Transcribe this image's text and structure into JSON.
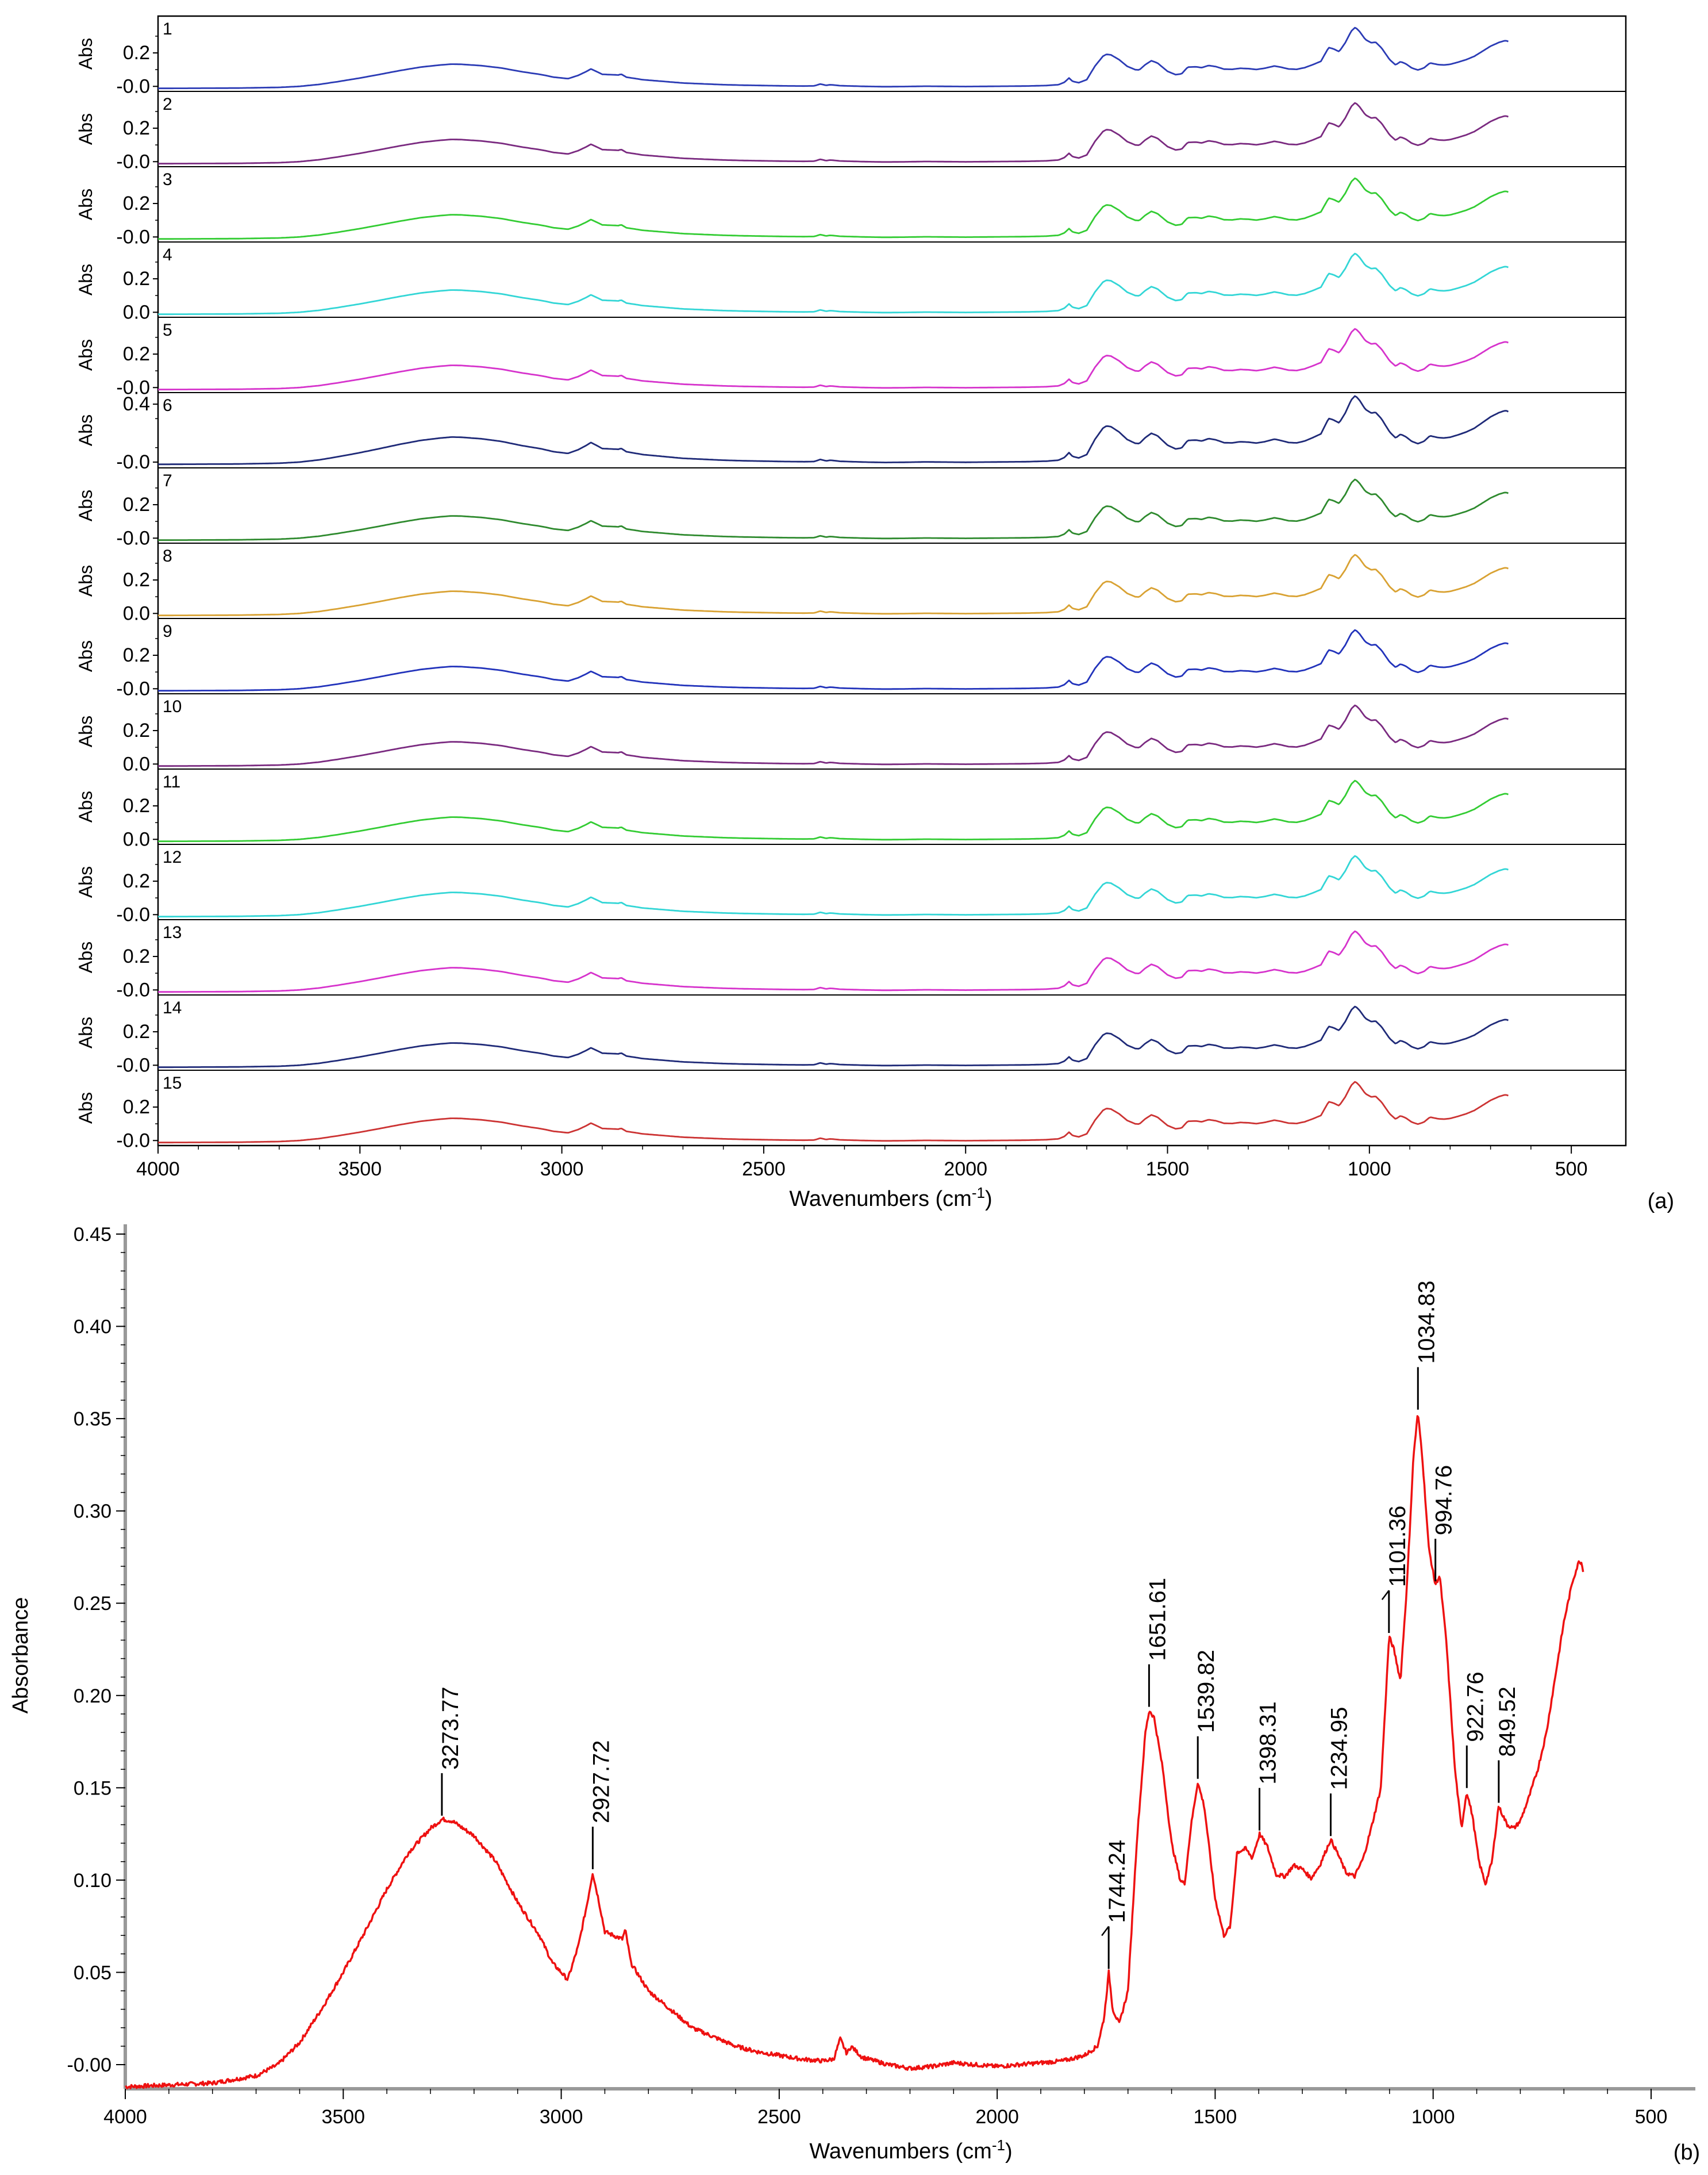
{
  "chart_data": [
    {
      "id": "a",
      "panel_label": "(a)",
      "type": "line",
      "title": "",
      "xlabel": "Wavenumbers (cm",
      "xlabel_sup": "-1",
      "xlabel_end": ")",
      "ylabel": "Abs",
      "xlim": [
        4000,
        365
      ],
      "xticks": [
        4000,
        3500,
        3000,
        2500,
        2000,
        1500,
        1000,
        500
      ],
      "series": [
        {
          "name": "1",
          "color": "#2b3bb5",
          "ylim": [
            -0.03,
            0.42
          ],
          "ticks": [
            {
              "v": 0.2,
              "label": "0.2"
            },
            {
              "v": 0.0,
              "label": "-0.0"
            }
          ],
          "scale": 1.0
        },
        {
          "name": "2",
          "color": "#7a2a80",
          "ylim": [
            -0.03,
            0.42
          ],
          "ticks": [
            {
              "v": 0.2,
              "label": "0.2"
            },
            {
              "v": 0.0,
              "label": "-0.0"
            }
          ],
          "scale": 1.0
        },
        {
          "name": "3",
          "color": "#33cc33",
          "ylim": [
            -0.03,
            0.42
          ],
          "ticks": [
            {
              "v": 0.2,
              "label": "0.2"
            },
            {
              "v": 0.0,
              "label": "-0.0"
            }
          ],
          "scale": 1.0
        },
        {
          "name": "4",
          "color": "#33d6d6",
          "ylim": [
            -0.03,
            0.42
          ],
          "ticks": [
            {
              "v": 0.2,
              "label": "0.2"
            },
            {
              "v": 0.0,
              "label": "0.0"
            }
          ],
          "scale": 1.0
        },
        {
          "name": "5",
          "color": "#d633cc",
          "ylim": [
            -0.03,
            0.42
          ],
          "ticks": [
            {
              "v": 0.2,
              "label": "0.2"
            },
            {
              "v": 0.0,
              "label": "-0.0"
            }
          ],
          "scale": 1.0
        },
        {
          "name": "6",
          "color": "#1f2a78",
          "ylim": [
            -0.04,
            0.48
          ],
          "ticks": [
            {
              "v": 0.4,
              "label": "0.4"
            },
            {
              "v": 0.0,
              "label": "-0.0"
            }
          ],
          "scale": 1.3
        },
        {
          "name": "7",
          "color": "#2e8a2e",
          "ylim": [
            -0.03,
            0.42
          ],
          "ticks": [
            {
              "v": 0.2,
              "label": "0.2"
            },
            {
              "v": 0.0,
              "label": "-0.0"
            }
          ],
          "scale": 1.0
        },
        {
          "name": "8",
          "color": "#d9a233",
          "ylim": [
            -0.03,
            0.42
          ],
          "ticks": [
            {
              "v": 0.2,
              "label": "0.2"
            },
            {
              "v": 0.0,
              "label": "0.0"
            }
          ],
          "scale": 1.0
        },
        {
          "name": "9",
          "color": "#2233bb",
          "ylim": [
            -0.03,
            0.42
          ],
          "ticks": [
            {
              "v": 0.2,
              "label": "0.2"
            },
            {
              "v": 0.0,
              "label": "-0.0"
            }
          ],
          "scale": 1.0
        },
        {
          "name": "10",
          "color": "#7a2a80",
          "ylim": [
            -0.03,
            0.42
          ],
          "ticks": [
            {
              "v": 0.2,
              "label": "0.2"
            },
            {
              "v": 0.0,
              "label": "0.0"
            }
          ],
          "scale": 1.0
        },
        {
          "name": "11",
          "color": "#33cc33",
          "ylim": [
            -0.03,
            0.42
          ],
          "ticks": [
            {
              "v": 0.2,
              "label": "0.2"
            },
            {
              "v": 0.0,
              "label": "0.0"
            }
          ],
          "scale": 1.0
        },
        {
          "name": "12",
          "color": "#33d6d6",
          "ylim": [
            -0.03,
            0.42
          ],
          "ticks": [
            {
              "v": 0.2,
              "label": "0.2"
            },
            {
              "v": 0.0,
              "label": "-0.0"
            }
          ],
          "scale": 1.0
        },
        {
          "name": "13",
          "color": "#d633cc",
          "ylim": [
            -0.03,
            0.42
          ],
          "ticks": [
            {
              "v": 0.2,
              "label": "0.2"
            },
            {
              "v": 0.0,
              "label": "-0.0"
            }
          ],
          "scale": 1.0
        },
        {
          "name": "14",
          "color": "#1f2a78",
          "ylim": [
            -0.03,
            0.42
          ],
          "ticks": [
            {
              "v": 0.2,
              "label": "0.2"
            },
            {
              "v": 0.0,
              "label": "-0.0"
            }
          ],
          "scale": 1.0
        },
        {
          "name": "15",
          "color": "#cc3333",
          "ylim": [
            -0.03,
            0.42
          ],
          "ticks": [
            {
              "v": 0.2,
              "label": "0.2"
            },
            {
              "v": 0.0,
              "label": "-0.0"
            }
          ],
          "scale": 1.0
        }
      ]
    },
    {
      "id": "b",
      "panel_label": "(b)",
      "type": "line",
      "title": "",
      "xlabel": "Wavenumbers (cm",
      "xlabel_sup": "-1",
      "xlabel_end": ")",
      "ylabel": "Absorbance",
      "xlim": [
        4000,
        410
      ],
      "ylim": [
        -0.012,
        0.455
      ],
      "xticks": [
        4000,
        3500,
        3000,
        2500,
        2000,
        1500,
        1000,
        500
      ],
      "yticks": [
        {
          "v": 0.45,
          "label": "0.45"
        },
        {
          "v": 0.4,
          "label": "0.40"
        },
        {
          "v": 0.35,
          "label": "0.35"
        },
        {
          "v": 0.3,
          "label": "0.30"
        },
        {
          "v": 0.25,
          "label": "0.25"
        },
        {
          "v": 0.2,
          "label": "0.20"
        },
        {
          "v": 0.15,
          "label": "0.15"
        },
        {
          "v": 0.1,
          "label": "0.10"
        },
        {
          "v": 0.05,
          "label": "0.05"
        },
        {
          "v": 0.0,
          "label": "-0.00"
        }
      ],
      "color": "#ee1111",
      "spectrum": [
        [
          4000,
          -0.012
        ],
        [
          3900,
          -0.011
        ],
        [
          3800,
          -0.01
        ],
        [
          3750,
          -0.008
        ],
        [
          3700,
          -0.006
        ],
        [
          3650,
          0.0
        ],
        [
          3600,
          0.012
        ],
        [
          3550,
          0.03
        ],
        [
          3500,
          0.05
        ],
        [
          3450,
          0.072
        ],
        [
          3400,
          0.095
        ],
        [
          3350,
          0.115
        ],
        [
          3300,
          0.128
        ],
        [
          3273,
          0.133
        ],
        [
          3250,
          0.132
        ],
        [
          3200,
          0.124
        ],
        [
          3150,
          0.11
        ],
        [
          3100,
          0.088
        ],
        [
          3050,
          0.07
        ],
        [
          3020,
          0.055
        ],
        [
          3000,
          0.05
        ],
        [
          2985,
          0.046
        ],
        [
          2960,
          0.065
        ],
        [
          2940,
          0.088
        ],
        [
          2928,
          0.104
        ],
        [
          2915,
          0.09
        ],
        [
          2900,
          0.072
        ],
        [
          2880,
          0.07
        ],
        [
          2860,
          0.068
        ],
        [
          2853,
          0.073
        ],
        [
          2840,
          0.055
        ],
        [
          2800,
          0.04
        ],
        [
          2750,
          0.03
        ],
        [
          2700,
          0.02
        ],
        [
          2650,
          0.015
        ],
        [
          2600,
          0.01
        ],
        [
          2550,
          0.007
        ],
        [
          2500,
          0.005
        ],
        [
          2450,
          0.003
        ],
        [
          2400,
          0.002
        ],
        [
          2375,
          0.003
        ],
        [
          2360,
          0.014
        ],
        [
          2345,
          0.006
        ],
        [
          2335,
          0.01
        ],
        [
          2310,
          0.004
        ],
        [
          2250,
          0.0
        ],
        [
          2200,
          -0.002
        ],
        [
          2150,
          -0.001
        ],
        [
          2100,
          0.001
        ],
        [
          2050,
          0.0
        ],
        [
          2000,
          -0.001
        ],
        [
          1950,
          0.0
        ],
        [
          1900,
          0.001
        ],
        [
          1850,
          0.002
        ],
        [
          1800,
          0.005
        ],
        [
          1770,
          0.01
        ],
        [
          1755,
          0.025
        ],
        [
          1744,
          0.05
        ],
        [
          1735,
          0.03
        ],
        [
          1720,
          0.022
        ],
        [
          1700,
          0.04
        ],
        [
          1680,
          0.12
        ],
        [
          1660,
          0.18
        ],
        [
          1651,
          0.192
        ],
        [
          1640,
          0.188
        ],
        [
          1620,
          0.16
        ],
        [
          1600,
          0.12
        ],
        [
          1580,
          0.1
        ],
        [
          1570,
          0.098
        ],
        [
          1555,
          0.13
        ],
        [
          1540,
          0.153
        ],
        [
          1525,
          0.14
        ],
        [
          1500,
          0.09
        ],
        [
          1480,
          0.07
        ],
        [
          1465,
          0.075
        ],
        [
          1450,
          0.115
        ],
        [
          1430,
          0.117
        ],
        [
          1415,
          0.112
        ],
        [
          1398,
          0.125
        ],
        [
          1380,
          0.118
        ],
        [
          1360,
          0.103
        ],
        [
          1340,
          0.102
        ],
        [
          1320,
          0.108
        ],
        [
          1300,
          0.106
        ],
        [
          1280,
          0.101
        ],
        [
          1260,
          0.108
        ],
        [
          1235,
          0.122
        ],
        [
          1220,
          0.115
        ],
        [
          1200,
          0.104
        ],
        [
          1180,
          0.102
        ],
        [
          1160,
          0.112
        ],
        [
          1140,
          0.13
        ],
        [
          1120,
          0.15
        ],
        [
          1101,
          0.232
        ],
        [
          1090,
          0.225
        ],
        [
          1075,
          0.208
        ],
        [
          1060,
          0.26
        ],
        [
          1045,
          0.33
        ],
        [
          1035,
          0.353
        ],
        [
          1025,
          0.33
        ],
        [
          1010,
          0.28
        ],
        [
          995,
          0.26
        ],
        [
          985,
          0.265
        ],
        [
          970,
          0.23
        ],
        [
          950,
          0.16
        ],
        [
          935,
          0.128
        ],
        [
          923,
          0.148
        ],
        [
          910,
          0.135
        ],
        [
          895,
          0.11
        ],
        [
          880,
          0.098
        ],
        [
          865,
          0.11
        ],
        [
          850,
          0.14
        ],
        [
          840,
          0.135
        ],
        [
          830,
          0.13
        ],
        [
          815,
          0.128
        ],
        [
          800,
          0.132
        ],
        [
          780,
          0.145
        ],
        [
          760,
          0.16
        ],
        [
          740,
          0.18
        ],
        [
          720,
          0.21
        ],
        [
          700,
          0.24
        ],
        [
          680,
          0.262
        ],
        [
          665,
          0.273
        ],
        [
          660,
          0.272
        ],
        [
          655,
          0.267
        ]
      ],
      "peaks": [
        {
          "x": 3273.77,
          "label": "3273.77",
          "y": 0.133
        },
        {
          "x": 2927.72,
          "label": "2927.72",
          "y": 0.104
        },
        {
          "x": 1744.24,
          "label": "1744.24",
          "y": 0.05,
          "slash": true
        },
        {
          "x": 1651.61,
          "label": "1651.61",
          "y": 0.192
        },
        {
          "x": 1539.82,
          "label": "1539.82",
          "y": 0.153
        },
        {
          "x": 1398.31,
          "label": "1398.31",
          "y": 0.125
        },
        {
          "x": 1234.95,
          "label": "1234.95",
          "y": 0.122
        },
        {
          "x": 1101.36,
          "label": "1101.36",
          "y": 0.232,
          "slash": true
        },
        {
          "x": 1034.83,
          "label": "1034.83",
          "y": 0.353
        },
        {
          "x": 994.76,
          "label": "994.76",
          "y": 0.26
        },
        {
          "x": 922.76,
          "label": "922.76",
          "y": 0.148
        },
        {
          "x": 849.52,
          "label": "849.52",
          "y": 0.14
        }
      ]
    }
  ]
}
